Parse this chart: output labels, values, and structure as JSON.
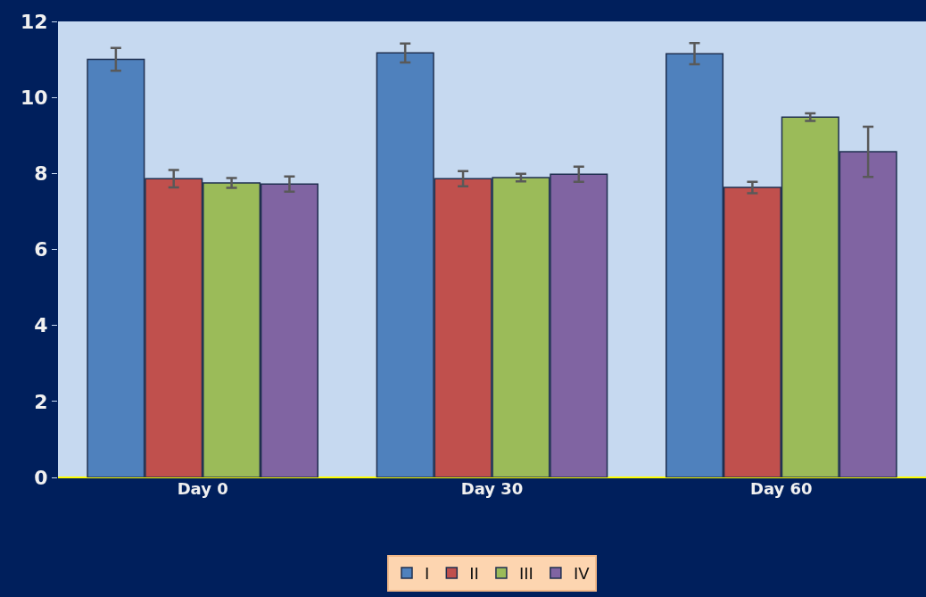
{
  "chart_data": {
    "type": "bar",
    "categories": [
      "Day 0",
      "Day 30",
      "Day 60"
    ],
    "series": [
      {
        "name": "I",
        "color": "#4f81bd",
        "values": [
          11.0,
          11.17,
          11.15
        ],
        "errors": [
          0.3,
          0.25,
          0.28
        ]
      },
      {
        "name": "II",
        "color": "#c0504d",
        "values": [
          7.86,
          7.86,
          7.63
        ],
        "errors": [
          0.23,
          0.2,
          0.15
        ]
      },
      {
        "name": "III",
        "color": "#9bbb59",
        "values": [
          7.75,
          7.89,
          9.48
        ],
        "errors": [
          0.13,
          0.1,
          0.1
        ]
      },
      {
        "name": "IV",
        "color": "#8064a2",
        "values": [
          7.72,
          7.98,
          8.57
        ],
        "errors": [
          0.2,
          0.2,
          0.66
        ]
      }
    ],
    "ylim": [
      0,
      12
    ],
    "yticks": [
      0,
      2,
      4,
      6,
      8,
      10,
      12
    ],
    "grid": false,
    "legend": "bottom"
  }
}
